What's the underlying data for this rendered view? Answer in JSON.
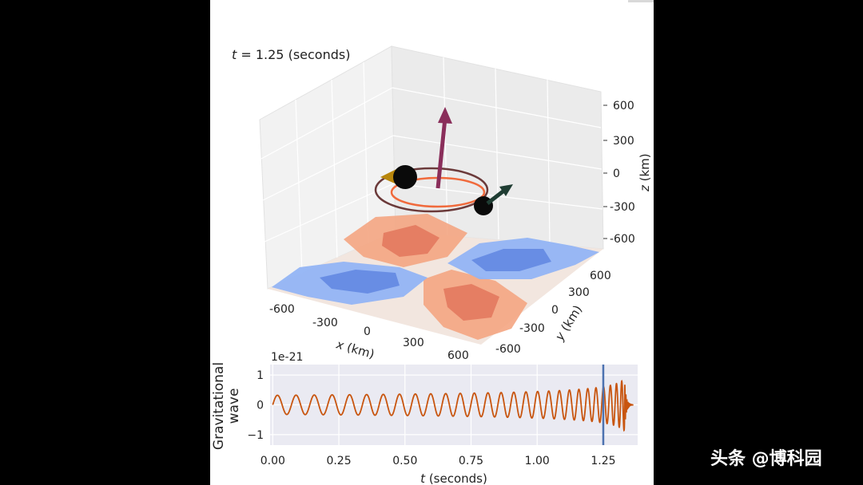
{
  "time_label": {
    "var": "t",
    "rest": " = 1.25 (seconds)"
  },
  "chart_data": [
    {
      "type": "3d-surface",
      "description": "Binary orbit with spin arrows above a contour plot of the gravitational wave field",
      "x_axis": {
        "label_var": "x",
        "label_unit": " (km)",
        "ticks": [
          -600,
          -300,
          0,
          300,
          600
        ],
        "range": [
          -800,
          800
        ]
      },
      "y_axis": {
        "label_var": "y",
        "label_unit": " (km)",
        "ticks": [
          -600,
          -300,
          0,
          300,
          600
        ],
        "range": [
          -800,
          800
        ]
      },
      "z_axis": {
        "label_var": "z",
        "label_unit": " (km)",
        "ticks": [
          600,
          300,
          0,
          -300,
          -600
        ],
        "range": [
          -800,
          800
        ]
      },
      "contour_colors": {
        "positive": "#f4a582",
        "strong_positive": "#e2765c",
        "negative": "#92b4f4",
        "strong_negative": "#5f86e0",
        "neutral": "#f2e6df"
      },
      "arrow_colors": {
        "orbital_axis": "#8a2e5a",
        "secondary_spin": "#1f3d33"
      }
    },
    {
      "type": "line",
      "offset_label": "1e-21",
      "title": "",
      "xlabel_var": "t",
      "xlabel_unit": " (seconds)",
      "ylabel_line1": "Gravitational",
      "ylabel_line2": "wave",
      "x_ticks": [
        "0.00",
        "0.25",
        "0.50",
        "0.75",
        "1.00",
        "1.25"
      ],
      "x_tick_values": [
        0.0,
        0.25,
        0.5,
        0.75,
        1.0,
        1.25
      ],
      "y_ticks": [
        "1",
        "0",
        "−1"
      ],
      "y_tick_values": [
        1,
        0,
        -1
      ],
      "xlim": [
        -0.01,
        1.38
      ],
      "ylim": [
        -1.35,
        1.35
      ],
      "marker_t": 1.25,
      "chirp": {
        "f0": 14,
        "tc": 1.355,
        "merge_t": 1.33,
        "end_t": 1.36,
        "base_amp": 0.32
      },
      "series_color": "#c8550f",
      "marker_color": "#4c72b0",
      "background": "#eaeaf2"
    }
  ],
  "watermark": "头条 @博科园"
}
